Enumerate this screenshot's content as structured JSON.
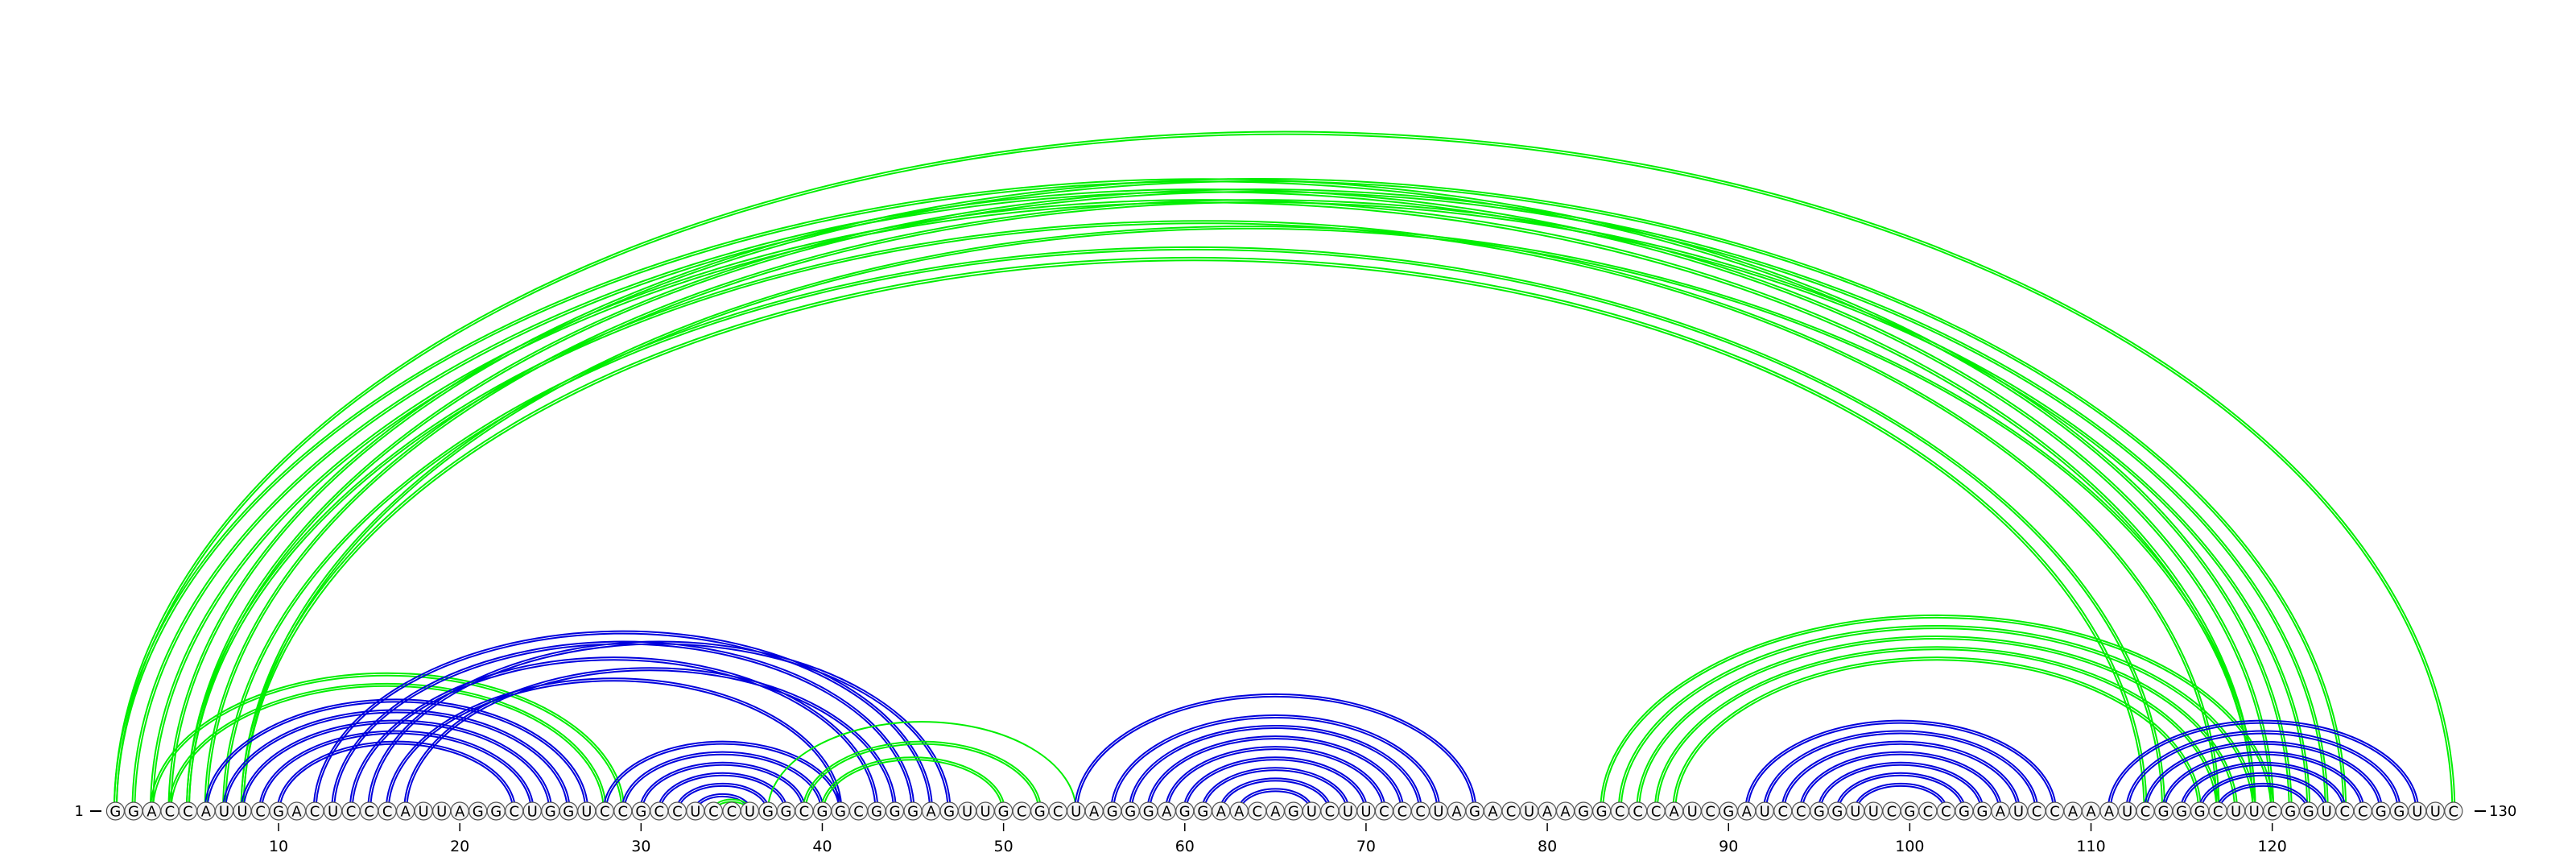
{
  "sequence": "GGACCAUUCGACUCCCAUUAGGCUGGUCCGCCUCCUGGCGGCGGGAGUUGCGCUAGGGAGGAACAGUCUUCCCUAGACUAAGGCCCAUCGAUCCGGUUCGCCGGAUCCAAAUCGGGCUUCGGUCCGGUUC",
  "start_label": "1",
  "end_label": "130",
  "ticks": [
    10,
    20,
    30,
    40,
    50,
    60,
    70,
    80,
    90,
    100,
    110,
    120
  ],
  "colors": {
    "nested": "#0000dd",
    "crossing": "#00ee00",
    "nucleotide_fill": "#f4f4f4",
    "nucleotide_stroke": "#555555"
  },
  "structures": [
    {
      "color": "crossing",
      "style": "double",
      "pairs": [
        [
          1,
          121
        ],
        [
          2,
          120
        ],
        [
          3,
          119
        ],
        [
          5,
          117
        ],
        [
          7,
          114
        ],
        [
          8,
          113
        ]
      ]
    },
    {
      "color": "crossing",
      "style": "double",
      "pairs": [
        [
          1,
          130
        ],
        [
          4,
          124
        ],
        [
          5,
          123
        ],
        [
          6,
          122
        ],
        [
          8,
          119
        ]
      ]
    },
    {
      "color": "nested",
      "style": "double",
      "pairs": [
        [
          6,
          27
        ],
        [
          7,
          26
        ],
        [
          8,
          25
        ],
        [
          9,
          24
        ],
        [
          10,
          23
        ]
      ]
    },
    {
      "color": "crossing",
      "style": "double",
      "pairs": [
        [
          3,
          29
        ],
        [
          4,
          28
        ]
      ]
    },
    {
      "color": "nested",
      "style": "double",
      "pairs": [
        [
          12,
          46
        ],
        [
          13,
          45
        ],
        [
          14,
          43
        ],
        [
          16,
          41
        ]
      ]
    },
    {
      "color": "nested",
      "style": "double",
      "pairs": [
        [
          15,
          47
        ],
        [
          17,
          44
        ]
      ]
    },
    {
      "color": "nested",
      "style": "double",
      "pairs": [
        [
          28,
          41
        ],
        [
          29,
          40
        ],
        [
          30,
          39
        ],
        [
          31,
          38
        ],
        [
          32,
          37
        ],
        [
          33,
          36
        ]
      ]
    },
    {
      "color": "crossing",
      "style": "double",
      "pairs": [
        [
          34,
          36
        ]
      ]
    },
    {
      "color": "crossing",
      "style": "double",
      "pairs": [
        [
          39,
          52
        ],
        [
          40,
          50
        ]
      ]
    },
    {
      "color": "crossing",
      "style": "single",
      "pairs": [
        [
          37,
          54
        ]
      ]
    },
    {
      "color": "nested",
      "style": "double",
      "pairs": [
        [
          54,
          76
        ],
        [
          56,
          74
        ],
        [
          57,
          73
        ],
        [
          58,
          72
        ],
        [
          59,
          71
        ],
        [
          60,
          70
        ],
        [
          61,
          69
        ],
        [
          62,
          68
        ],
        [
          63,
          67
        ]
      ]
    },
    {
      "color": "crossing",
      "style": "double",
      "pairs": [
        [
          83,
          120
        ],
        [
          84,
          119
        ],
        [
          85,
          118
        ],
        [
          86,
          117
        ],
        [
          87,
          116
        ]
      ]
    },
    {
      "color": "nested",
      "style": "double",
      "pairs": [
        [
          91,
          108
        ],
        [
          92,
          107
        ],
        [
          93,
          106
        ],
        [
          94,
          105
        ],
        [
          95,
          104
        ],
        [
          96,
          103
        ],
        [
          97,
          102
        ]
      ]
    },
    {
      "color": "nested",
      "style": "double",
      "pairs": [
        [
          111,
          128
        ],
        [
          112,
          127
        ],
        [
          113,
          126
        ],
        [
          114,
          125
        ],
        [
          115,
          124
        ],
        [
          116,
          123
        ],
        [
          117,
          122
        ]
      ]
    }
  ]
}
